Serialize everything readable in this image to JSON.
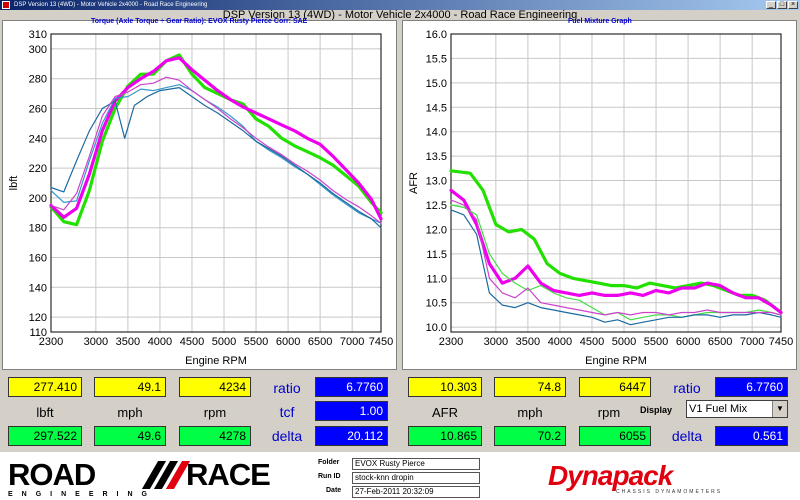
{
  "window": {
    "title_small": "DSP Version 13 (4WD) - Motor Vehicle 2x4000 - Road Race Engineering",
    "app_title": "DSP Version 13 (4WD) - Motor Vehicle 2x4000 - Road Race Engineering"
  },
  "left_chart": {
    "subtitle": "Torque (Axle Torque ÷ Gear Ratio): EVOX Rusty Pierce     Corr: SAE"
  },
  "right_chart": {
    "subtitle": "Fuel Mixture Graph"
  },
  "left_readout": {
    "row1": [
      "277.410",
      "49.1",
      "4234"
    ],
    "labels": [
      "lbft",
      "mph",
      "rpm"
    ],
    "row2": [
      "297.522",
      "49.6",
      "4278"
    ],
    "ratio_label": "ratio",
    "ratio_value": "6.7760",
    "tcf_label": "tcf",
    "tcf_value": "1.00",
    "delta_label": "delta",
    "delta_value": "20.112"
  },
  "right_readout": {
    "row1": [
      "10.303",
      "74.8",
      "6447"
    ],
    "labels": [
      "AFR",
      "mph",
      "rpm"
    ],
    "row2": [
      "10.865",
      "70.2",
      "6055"
    ],
    "ratio_label": "ratio",
    "ratio_value": "6.7760",
    "display_label": "Display",
    "display_value": "V1 Fuel Mix",
    "delta_label": "delta",
    "delta_value": "0.561"
  },
  "footer": {
    "logo_left_word1": "ROAD",
    "logo_left_word2": "RACE",
    "logo_left_sub": "ENGINEERING",
    "folder_label": "Folder",
    "folder_value": "EVOX Rusty Pierce",
    "runid_label": "Run ID",
    "runid_value": "stock-knn dropin",
    "date_label": "Date",
    "date_value": "27-Feb-2011 20:32:09",
    "logo_right": "Dynapack",
    "logo_right_sub": "CHASSIS DYNAMOMETERS"
  },
  "colors": {
    "green": "#22e000",
    "magenta": "#ee00ee",
    "teal": "#2277bb",
    "grid": "#c8c8c8"
  },
  "chart_data": [
    {
      "type": "line",
      "xlabel": "Engine RPM",
      "ylabel": "lbft",
      "xlim": [
        2300,
        7450
      ],
      "ylim": [
        110,
        310
      ],
      "x_ticks": [
        2300,
        3000,
        3500,
        4000,
        4500,
        5000,
        5500,
        6000,
        6500,
        7000,
        7450
      ],
      "y_ticks": [
        110,
        120,
        140,
        160,
        180,
        200,
        220,
        240,
        260,
        280,
        300,
        310
      ],
      "series": [
        {
          "color": "#22e000",
          "width": 3.2,
          "x": [
            2300,
            2500,
            2700,
            2900,
            3100,
            3300,
            3500,
            3700,
            3900,
            4100,
            4300,
            4500,
            4700,
            4900,
            5100,
            5300,
            5500,
            5700,
            5900,
            6100,
            6300,
            6500,
            6700,
            6900,
            7100,
            7300,
            7450
          ],
          "y": [
            194,
            184,
            182,
            205,
            238,
            260,
            275,
            283,
            283,
            292,
            296,
            283,
            274,
            270,
            266,
            263,
            253,
            248,
            240,
            235,
            231,
            227,
            222,
            215,
            208,
            197,
            190
          ]
        },
        {
          "color": "#ee00ee",
          "width": 3.2,
          "x": [
            2300,
            2500,
            2700,
            2900,
            3100,
            3300,
            3500,
            3700,
            3900,
            4100,
            4300,
            4500,
            4700,
            4900,
            5100,
            5300,
            5500,
            5700,
            5900,
            6100,
            6300,
            6500,
            6700,
            6900,
            7100,
            7300,
            7450
          ],
          "y": [
            195,
            187,
            193,
            216,
            245,
            265,
            274,
            280,
            285,
            292,
            294,
            286,
            279,
            272,
            266,
            261,
            257,
            253,
            249,
            245,
            240,
            236,
            228,
            219,
            210,
            199,
            186
          ]
        },
        {
          "color": "#3399cc",
          "width": 1.2,
          "x": [
            2300,
            2500,
            2700,
            2900,
            3100,
            3300,
            3500,
            3700,
            3900,
            4100,
            4300,
            4500,
            4700,
            4900,
            5100,
            5300,
            5500,
            5700,
            5900,
            6100,
            6300,
            6500,
            6700,
            6900,
            7100,
            7300,
            7450
          ],
          "y": [
            205,
            197,
            198,
            225,
            250,
            267,
            268,
            273,
            272,
            274,
            276,
            272,
            266,
            261,
            255,
            248,
            238,
            232,
            227,
            221,
            216,
            209,
            202,
            196,
            190,
            186,
            183
          ]
        },
        {
          "color": "#1a6aa0",
          "width": 1.2,
          "x": [
            2300,
            2500,
            2700,
            2900,
            3100,
            3300,
            3450,
            3600,
            3800,
            4000,
            4300,
            4500,
            4700,
            4900,
            5100,
            5300,
            5500,
            5700,
            5900,
            6100,
            6300,
            6500,
            6700,
            6900,
            7100,
            7300,
            7450
          ],
          "y": [
            207,
            204,
            225,
            245,
            260,
            265,
            240,
            262,
            268,
            272,
            274,
            268,
            262,
            257,
            251,
            245,
            238,
            233,
            228,
            222,
            216,
            210,
            203,
            197,
            191,
            186,
            180
          ]
        },
        {
          "color": "#cc44cc",
          "width": 1.2,
          "x": [
            2300,
            2500,
            2700,
            2900,
            3100,
            3300,
            3500,
            3700,
            3900,
            4100,
            4300,
            4500,
            4700,
            4900,
            5100,
            5300,
            5500,
            5700,
            5900,
            6100,
            6300,
            6500,
            6700,
            6900,
            7100,
            7300,
            7450
          ],
          "y": [
            195,
            192,
            203,
            228,
            255,
            268,
            271,
            276,
            277,
            281,
            279,
            272,
            266,
            260,
            253,
            247,
            240,
            234,
            229,
            223,
            218,
            212,
            205,
            199,
            194,
            188,
            183
          ]
        }
      ]
    },
    {
      "type": "line",
      "xlabel": "Engine RPM",
      "ylabel": "AFR",
      "xlim": [
        2300,
        7450
      ],
      "ylim": [
        9.9,
        16.0
      ],
      "x_ticks": [
        2300,
        3000,
        3500,
        4000,
        4500,
        5000,
        5500,
        6000,
        6500,
        7000,
        7450
      ],
      "y_ticks": [
        10.0,
        10.5,
        11.0,
        11.5,
        12.0,
        12.5,
        13.0,
        13.5,
        14.0,
        14.5,
        15.0,
        15.5,
        16.0
      ],
      "series": [
        {
          "color": "#22e000",
          "width": 3.2,
          "x": [
            2300,
            2600,
            2800,
            3000,
            3200,
            3400,
            3600,
            3800,
            4000,
            4200,
            4400,
            4600,
            4800,
            5000,
            5200,
            5400,
            5600,
            5800,
            6000,
            6200,
            6400,
            6600,
            6800,
            7000,
            7200,
            7450
          ],
          "y": [
            13.2,
            13.15,
            12.8,
            12.1,
            11.95,
            12.0,
            11.8,
            11.3,
            11.1,
            11.0,
            10.95,
            10.9,
            10.85,
            10.85,
            10.8,
            10.9,
            10.85,
            10.8,
            10.85,
            10.9,
            10.85,
            10.75,
            10.65,
            10.65,
            10.55,
            10.3
          ]
        },
        {
          "color": "#ee00ee",
          "width": 3.2,
          "x": [
            2300,
            2500,
            2700,
            2900,
            3100,
            3300,
            3500,
            3700,
            3900,
            4100,
            4300,
            4500,
            4700,
            4900,
            5100,
            5300,
            5500,
            5700,
            5900,
            6100,
            6300,
            6500,
            6700,
            6900,
            7100,
            7300,
            7450
          ],
          "y": [
            12.8,
            12.6,
            12.1,
            11.3,
            10.9,
            11.0,
            11.25,
            10.9,
            10.75,
            10.7,
            10.65,
            10.7,
            10.65,
            10.65,
            10.7,
            10.65,
            10.75,
            10.7,
            10.8,
            10.8,
            10.9,
            10.85,
            10.7,
            10.6,
            10.6,
            10.45,
            10.3
          ]
        },
        {
          "color": "#44dd44",
          "width": 1.2,
          "x": [
            2300,
            2500,
            2700,
            2900,
            3100,
            3300,
            3500,
            3700,
            3900,
            4100,
            4300,
            4500,
            4700,
            4900,
            5100,
            5300,
            5500,
            5700,
            5900,
            6100,
            6300,
            6500,
            6700,
            6900,
            7100,
            7300,
            7450
          ],
          "y": [
            12.5,
            12.45,
            12.3,
            11.5,
            11.1,
            10.9,
            10.75,
            10.85,
            10.7,
            10.6,
            10.55,
            10.4,
            10.25,
            10.3,
            10.15,
            10.2,
            10.25,
            10.25,
            10.2,
            10.25,
            10.3,
            10.3,
            10.3,
            10.3,
            10.35,
            10.3,
            10.25
          ]
        },
        {
          "color": "#1a6aa0",
          "width": 1.2,
          "x": [
            2300,
            2500,
            2700,
            2900,
            3100,
            3300,
            3500,
            3700,
            3900,
            4100,
            4300,
            4500,
            4700,
            4900,
            5100,
            5300,
            5500,
            5700,
            5900,
            6100,
            6300,
            6500,
            6700,
            6900,
            7100,
            7300,
            7450
          ],
          "y": [
            12.4,
            12.3,
            11.9,
            10.7,
            10.45,
            10.4,
            10.5,
            10.4,
            10.35,
            10.3,
            10.25,
            10.2,
            10.1,
            10.15,
            10.05,
            10.1,
            10.15,
            10.2,
            10.2,
            10.25,
            10.25,
            10.2,
            10.25,
            10.25,
            10.3,
            10.25,
            10.2
          ]
        },
        {
          "color": "#cc44cc",
          "width": 1.2,
          "x": [
            2300,
            2500,
            2700,
            2900,
            3100,
            3300,
            3500,
            3700,
            3900,
            4100,
            4300,
            4500,
            4700,
            4900,
            5100,
            5300,
            5500,
            5700,
            5900,
            6100,
            6300,
            6500,
            6700,
            6900,
            7100,
            7300,
            7450
          ],
          "y": [
            12.6,
            12.5,
            12.2,
            11.0,
            10.7,
            10.6,
            10.8,
            10.5,
            10.45,
            10.4,
            10.35,
            10.3,
            10.25,
            10.3,
            10.25,
            10.3,
            10.3,
            10.25,
            10.3,
            10.3,
            10.35,
            10.3,
            10.3,
            10.3,
            10.3,
            10.3,
            10.25
          ]
        }
      ]
    }
  ]
}
